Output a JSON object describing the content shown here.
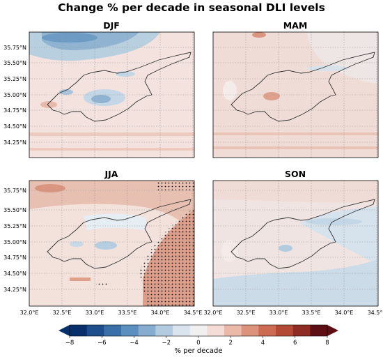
{
  "figure": {
    "title": "Change % per decade in seasonal DLI levels"
  },
  "panels": [
    {
      "label": "DJF",
      "tone": "cool-north"
    },
    {
      "label": "MAM",
      "tone": "warm"
    },
    {
      "label": "JJA",
      "tone": "warm-stippled-east"
    },
    {
      "label": "SON",
      "tone": "cool-south"
    }
  ],
  "axes": {
    "lat_ticks": [
      "35.75°N",
      "35.50°N",
      "35.25°N",
      "35.00°N",
      "34.75°N",
      "34.50°N",
      "34.25°N"
    ],
    "lon_ticks": [
      "32.0°E",
      "32.5°E",
      "33.0°E",
      "33.5°E",
      "34.0°E",
      "34.5°E"
    ]
  },
  "colorbar": {
    "label": "% per decade",
    "ticks": [
      "−8",
      "−6",
      "−4",
      "−2",
      "0",
      "2",
      "4",
      "6",
      "8"
    ],
    "range": [
      -8,
      8
    ],
    "colormap": [
      "#08306b",
      "#1f4e8c",
      "#3a6fa8",
      "#5b8fbf",
      "#86adcf",
      "#b3cbdf",
      "#d9e4ee",
      "#f0f0f0",
      "#f4ddd6",
      "#eab9aa",
      "#dd927c",
      "#cc6b52",
      "#b24a35",
      "#8e2b22",
      "#5e0f14"
    ]
  }
}
